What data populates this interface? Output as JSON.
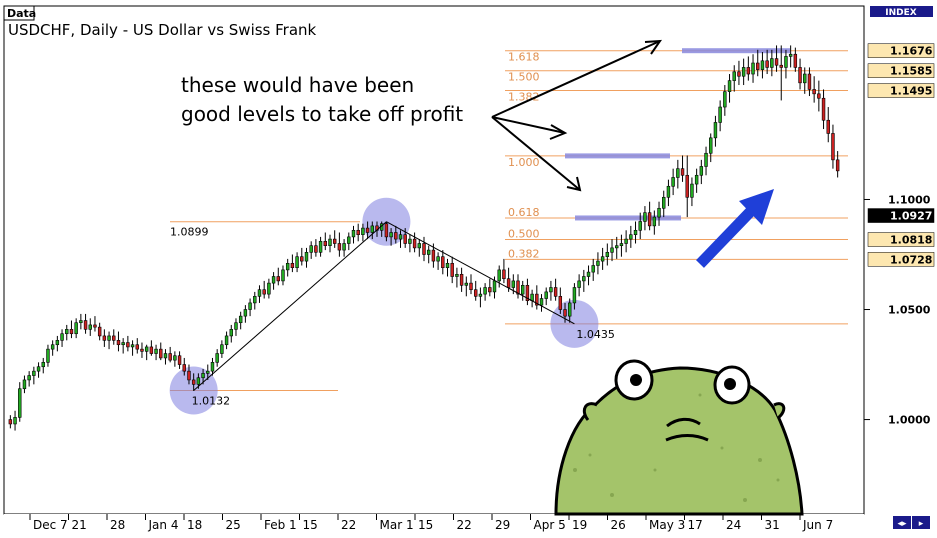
{
  "window": {
    "data_tab_label": "Data",
    "symbol_title": "USDCHF, Daily - US Dollar vs Swiss Frank",
    "index_label": "INDEX"
  },
  "annotation": {
    "line1": "these would have been",
    "line2": "good levels to take off profit"
  },
  "colors": {
    "up_candle": "#22aa22",
    "down_candle": "#cc2222",
    "fib_line": "#f0a060",
    "fib_label": "#e09050",
    "highlight_band": "#8888dd",
    "circle_fill": "#8080e0",
    "arrow_blue": "#1f3fd8",
    "price_tag_bg": "#fde7b0",
    "current_price_bg": "#000000",
    "character_body": "#a4c46a"
  },
  "chart_data": {
    "type": "candlestick",
    "title": "USDCHF, Daily - US Dollar vs Swiss Frank",
    "x_tick_labels": [
      "Dec 7",
      "21",
      "28",
      "Jan 4",
      "18",
      "25",
      "Feb 1",
      "15",
      "22",
      "Mar 1",
      "15",
      "22",
      "29",
      "Apr 5",
      "19",
      "26",
      "May 3",
      "17",
      "24",
      "31",
      "Jun 7"
    ],
    "y_tick_labels": [
      "1.1000",
      "1.0500",
      "1.0000"
    ],
    "y_tick_values": [
      1.1,
      1.05,
      1.0
    ],
    "ylim": [
      0.958,
      1.187
    ],
    "price_tags": [
      {
        "label": "1.1676",
        "value": 1.1676
      },
      {
        "label": "1.1585",
        "value": 1.1585
      },
      {
        "label": "1.1495",
        "value": 1.1495
      },
      {
        "label": "1.0927",
        "value": 1.0927,
        "current": true
      },
      {
        "label": "1.0818",
        "value": 1.0818
      },
      {
        "label": "1.0728",
        "value": 1.0728
      }
    ],
    "fib_levels_upper": [
      {
        "ratio": "1.618",
        "value": 1.1676
      },
      {
        "ratio": "1.500",
        "value": 1.1585
      },
      {
        "ratio": "1.382",
        "value": 1.1495
      },
      {
        "ratio": "1.000",
        "value": 1.1198
      }
    ],
    "fib_levels_lower": [
      {
        "ratio": "0.618",
        "value": 1.0916
      },
      {
        "ratio": "0.500",
        "value": 1.0818
      },
      {
        "ratio": "0.382",
        "value": 1.0728
      }
    ],
    "swing_points": [
      {
        "label": "1.0132",
        "value": 1.0132,
        "index": 39
      },
      {
        "label": "1.0899",
        "value": 1.0899,
        "index": 80
      },
      {
        "label": "1.0435",
        "value": 1.0435,
        "index": 120
      }
    ],
    "candles": [
      [
        1.0,
        1.002,
        0.996,
        0.998
      ],
      [
        0.998,
        1.004,
        0.995,
        1.001
      ],
      [
        1.001,
        1.017,
        0.999,
        1.014
      ],
      [
        1.014,
        1.02,
        1.012,
        1.018
      ],
      [
        1.018,
        1.022,
        1.015,
        1.02
      ],
      [
        1.02,
        1.024,
        1.016,
        1.022
      ],
      [
        1.022,
        1.026,
        1.019,
        1.024
      ],
      [
        1.024,
        1.028,
        1.021,
        1.026
      ],
      [
        1.026,
        1.034,
        1.024,
        1.032
      ],
      [
        1.032,
        1.036,
        1.029,
        1.034
      ],
      [
        1.034,
        1.038,
        1.031,
        1.036
      ],
      [
        1.036,
        1.041,
        1.033,
        1.039
      ],
      [
        1.039,
        1.043,
        1.036,
        1.041
      ],
      [
        1.041,
        1.045,
        1.037,
        1.039
      ],
      [
        1.039,
        1.046,
        1.037,
        1.044
      ],
      [
        1.044,
        1.048,
        1.041,
        1.045
      ],
      [
        1.045,
        1.048,
        1.039,
        1.041
      ],
      [
        1.041,
        1.046,
        1.038,
        1.043
      ],
      [
        1.043,
        1.047,
        1.04,
        1.042
      ],
      [
        1.042,
        1.044,
        1.036,
        1.038
      ],
      [
        1.038,
        1.041,
        1.033,
        1.036
      ],
      [
        1.036,
        1.04,
        1.032,
        1.038
      ],
      [
        1.038,
        1.041,
        1.034,
        1.036
      ],
      [
        1.036,
        1.04,
        1.031,
        1.034
      ],
      [
        1.034,
        1.037,
        1.03,
        1.035
      ],
      [
        1.035,
        1.038,
        1.031,
        1.033
      ],
      [
        1.033,
        1.036,
        1.029,
        1.034
      ],
      [
        1.034,
        1.037,
        1.03,
        1.032
      ],
      [
        1.032,
        1.035,
        1.028,
        1.031
      ],
      [
        1.031,
        1.034,
        1.027,
        1.033
      ],
      [
        1.033,
        1.036,
        1.029,
        1.03
      ],
      [
        1.03,
        1.034,
        1.027,
        1.032
      ],
      [
        1.032,
        1.035,
        1.027,
        1.028
      ],
      [
        1.028,
        1.032,
        1.025,
        1.03
      ],
      [
        1.03,
        1.033,
        1.026,
        1.027
      ],
      [
        1.027,
        1.031,
        1.024,
        1.029
      ],
      [
        1.029,
        1.031,
        1.023,
        1.025
      ],
      [
        1.025,
        1.028,
        1.02,
        1.022
      ],
      [
        1.022,
        1.025,
        1.016,
        1.018
      ],
      [
        1.018,
        1.021,
        1.013,
        1.016
      ],
      [
        1.016,
        1.021,
        1.014,
        1.019
      ],
      [
        1.019,
        1.023,
        1.016,
        1.021
      ],
      [
        1.021,
        1.025,
        1.018,
        1.022
      ],
      [
        1.022,
        1.028,
        1.02,
        1.026
      ],
      [
        1.026,
        1.032,
        1.024,
        1.03
      ],
      [
        1.03,
        1.036,
        1.028,
        1.034
      ],
      [
        1.034,
        1.04,
        1.032,
        1.038
      ],
      [
        1.038,
        1.043,
        1.035,
        1.041
      ],
      [
        1.041,
        1.046,
        1.038,
        1.044
      ],
      [
        1.044,
        1.049,
        1.041,
        1.047
      ],
      [
        1.047,
        1.052,
        1.044,
        1.05
      ],
      [
        1.05,
        1.055,
        1.047,
        1.053
      ],
      [
        1.053,
        1.058,
        1.05,
        1.056
      ],
      [
        1.056,
        1.061,
        1.053,
        1.059
      ],
      [
        1.059,
        1.063,
        1.055,
        1.057
      ],
      [
        1.057,
        1.064,
        1.055,
        1.062
      ],
      [
        1.062,
        1.067,
        1.059,
        1.065
      ],
      [
        1.065,
        1.069,
        1.061,
        1.063
      ],
      [
        1.063,
        1.07,
        1.061,
        1.068
      ],
      [
        1.068,
        1.073,
        1.065,
        1.071
      ],
      [
        1.071,
        1.075,
        1.067,
        1.069
      ],
      [
        1.069,
        1.076,
        1.067,
        1.074
      ],
      [
        1.074,
        1.078,
        1.07,
        1.072
      ],
      [
        1.072,
        1.078,
        1.069,
        1.076
      ],
      [
        1.076,
        1.081,
        1.073,
        1.079
      ],
      [
        1.079,
        1.082,
        1.074,
        1.076
      ],
      [
        1.076,
        1.083,
        1.074,
        1.081
      ],
      [
        1.081,
        1.085,
        1.077,
        1.079
      ],
      [
        1.079,
        1.084,
        1.076,
        1.082
      ],
      [
        1.082,
        1.086,
        1.078,
        1.08
      ],
      [
        1.08,
        1.085,
        1.074,
        1.077
      ],
      [
        1.077,
        1.082,
        1.074,
        1.08
      ],
      [
        1.08,
        1.085,
        1.077,
        1.083
      ],
      [
        1.083,
        1.088,
        1.08,
        1.086
      ],
      [
        1.086,
        1.089,
        1.081,
        1.084
      ],
      [
        1.084,
        1.089,
        1.081,
        1.087
      ],
      [
        1.087,
        1.09,
        1.082,
        1.085
      ],
      [
        1.085,
        1.09,
        1.082,
        1.088
      ],
      [
        1.088,
        1.09,
        1.083,
        1.086
      ],
      [
        1.086,
        1.09,
        1.083,
        1.089
      ],
      [
        1.089,
        1.09,
        1.081,
        1.083
      ],
      [
        1.083,
        1.087,
        1.079,
        1.085
      ],
      [
        1.085,
        1.088,
        1.08,
        1.082
      ],
      [
        1.082,
        1.086,
        1.078,
        1.084
      ],
      [
        1.084,
        1.087,
        1.078,
        1.08
      ],
      [
        1.08,
        1.084,
        1.076,
        1.082
      ],
      [
        1.082,
        1.085,
        1.076,
        1.078
      ],
      [
        1.078,
        1.082,
        1.074,
        1.08
      ],
      [
        1.08,
        1.083,
        1.072,
        1.075
      ],
      [
        1.075,
        1.079,
        1.071,
        1.077
      ],
      [
        1.077,
        1.08,
        1.069,
        1.072
      ],
      [
        1.072,
        1.076,
        1.068,
        1.074
      ],
      [
        1.074,
        1.077,
        1.066,
        1.069
      ],
      [
        1.069,
        1.073,
        1.065,
        1.071
      ],
      [
        1.071,
        1.074,
        1.062,
        1.065
      ],
      [
        1.065,
        1.069,
        1.06,
        1.066
      ],
      [
        1.066,
        1.069,
        1.058,
        1.061
      ],
      [
        1.061,
        1.065,
        1.056,
        1.062
      ],
      [
        1.062,
        1.066,
        1.057,
        1.059
      ],
      [
        1.059,
        1.063,
        1.054,
        1.056
      ],
      [
        1.056,
        1.06,
        1.051,
        1.057
      ],
      [
        1.057,
        1.062,
        1.054,
        1.06
      ],
      [
        1.06,
        1.064,
        1.056,
        1.058
      ],
      [
        1.058,
        1.065,
        1.055,
        1.063
      ],
      [
        1.063,
        1.07,
        1.06,
        1.068
      ],
      [
        1.068,
        1.073,
        1.062,
        1.064
      ],
      [
        1.064,
        1.069,
        1.058,
        1.06
      ],
      [
        1.06,
        1.066,
        1.057,
        1.063
      ],
      [
        1.063,
        1.066,
        1.055,
        1.057
      ],
      [
        1.057,
        1.063,
        1.054,
        1.061
      ],
      [
        1.061,
        1.064,
        1.052,
        1.054
      ],
      [
        1.054,
        1.059,
        1.051,
        1.057
      ],
      [
        1.057,
        1.061,
        1.05,
        1.052
      ],
      [
        1.052,
        1.057,
        1.049,
        1.055
      ],
      [
        1.055,
        1.06,
        1.052,
        1.058
      ],
      [
        1.058,
        1.063,
        1.054,
        1.06
      ],
      [
        1.06,
        1.064,
        1.054,
        1.056
      ],
      [
        1.056,
        1.06,
        1.048,
        1.05
      ],
      [
        1.05,
        1.053,
        1.044,
        1.047
      ],
      [
        1.047,
        1.055,
        1.044,
        1.053
      ],
      [
        1.053,
        1.062,
        1.05,
        1.06
      ],
      [
        1.06,
        1.066,
        1.056,
        1.063
      ],
      [
        1.063,
        1.068,
        1.058,
        1.065
      ],
      [
        1.065,
        1.07,
        1.061,
        1.067
      ],
      [
        1.067,
        1.073,
        1.063,
        1.07
      ],
      [
        1.07,
        1.076,
        1.066,
        1.072
      ],
      [
        1.072,
        1.078,
        1.068,
        1.074
      ],
      [
        1.074,
        1.08,
        1.07,
        1.076
      ],
      [
        1.076,
        1.082,
        1.072,
        1.078
      ],
      [
        1.078,
        1.083,
        1.073,
        1.079
      ],
      [
        1.079,
        1.084,
        1.074,
        1.08
      ],
      [
        1.08,
        1.086,
        1.076,
        1.082
      ],
      [
        1.082,
        1.088,
        1.078,
        1.084
      ],
      [
        1.084,
        1.09,
        1.08,
        1.086
      ],
      [
        1.086,
        1.094,
        1.082,
        1.09
      ],
      [
        1.09,
        1.097,
        1.086,
        1.094
      ],
      [
        1.094,
        1.099,
        1.086,
        1.088
      ],
      [
        1.088,
        1.095,
        1.084,
        1.092
      ],
      [
        1.092,
        1.099,
        1.088,
        1.096
      ],
      [
        1.096,
        1.104,
        1.092,
        1.101
      ],
      [
        1.101,
        1.109,
        1.097,
        1.106
      ],
      [
        1.106,
        1.114,
        1.102,
        1.11
      ],
      [
        1.11,
        1.118,
        1.105,
        1.114
      ],
      [
        1.114,
        1.12,
        1.108,
        1.111
      ],
      [
        1.111,
        1.12,
        1.092,
        1.101
      ],
      [
        1.101,
        1.11,
        1.097,
        1.107
      ],
      [
        1.107,
        1.114,
        1.103,
        1.111
      ],
      [
        1.111,
        1.118,
        1.107,
        1.115
      ],
      [
        1.115,
        1.124,
        1.111,
        1.121
      ],
      [
        1.121,
        1.13,
        1.117,
        1.128
      ],
      [
        1.128,
        1.138,
        1.124,
        1.135
      ],
      [
        1.135,
        1.145,
        1.131,
        1.142
      ],
      [
        1.142,
        1.152,
        1.138,
        1.149
      ],
      [
        1.149,
        1.157,
        1.144,
        1.154
      ],
      [
        1.154,
        1.161,
        1.149,
        1.158
      ],
      [
        1.158,
        1.163,
        1.152,
        1.156
      ],
      [
        1.156,
        1.164,
        1.152,
        1.16
      ],
      [
        1.16,
        1.165,
        1.154,
        1.157
      ],
      [
        1.157,
        1.166,
        1.153,
        1.162
      ],
      [
        1.162,
        1.168,
        1.156,
        1.159
      ],
      [
        1.159,
        1.167,
        1.155,
        1.163
      ],
      [
        1.163,
        1.168,
        1.157,
        1.16
      ],
      [
        1.16,
        1.168,
        1.156,
        1.164
      ],
      [
        1.164,
        1.17,
        1.158,
        1.161
      ],
      [
        1.161,
        1.17,
        1.145,
        1.16
      ],
      [
        1.16,
        1.168,
        1.155,
        1.165
      ],
      [
        1.165,
        1.17,
        1.16,
        1.166
      ],
      [
        1.166,
        1.169,
        1.158,
        1.16
      ],
      [
        1.16,
        1.164,
        1.15,
        1.153
      ],
      [
        1.153,
        1.16,
        1.148,
        1.157
      ],
      [
        1.157,
        1.16,
        1.147,
        1.15
      ],
      [
        1.15,
        1.156,
        1.144,
        1.148
      ],
      [
        1.148,
        1.154,
        1.14,
        1.146
      ],
      [
        1.146,
        1.15,
        1.132,
        1.136
      ],
      [
        1.136,
        1.142,
        1.126,
        1.13
      ],
      [
        1.13,
        1.134,
        1.114,
        1.118
      ],
      [
        1.118,
        1.122,
        1.11,
        1.113
      ]
    ]
  }
}
